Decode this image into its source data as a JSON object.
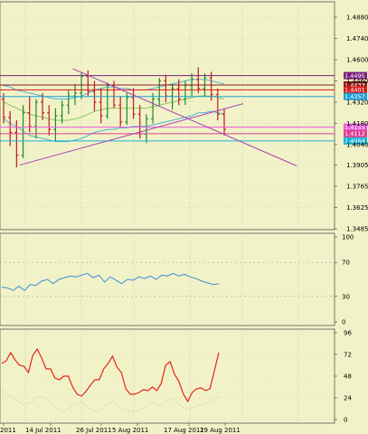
{
  "chart_data": [
    {
      "type": "candlestick",
      "panel": "price",
      "y_ticks": [
        "1.4880",
        "1.4740",
        "1.4600",
        "1.4460",
        "1.4320",
        "1.4180",
        "1.4040",
        "1.3905",
        "1.3765",
        "1.3625",
        "1.3485"
      ],
      "ylim": [
        1.3485,
        1.488
      ],
      "bars": [
        {
          "o": 1.434,
          "h": 1.438,
          "l": 1.418,
          "c": 1.422
        },
        {
          "o": 1.422,
          "h": 1.426,
          "l": 1.403,
          "c": 1.412
        },
        {
          "o": 1.412,
          "h": 1.42,
          "l": 1.389,
          "c": 1.397
        },
        {
          "o": 1.397,
          "h": 1.43,
          "l": 1.395,
          "c": 1.425
        },
        {
          "o": 1.425,
          "h": 1.436,
          "l": 1.412,
          "c": 1.416
        },
        {
          "o": 1.416,
          "h": 1.434,
          "l": 1.408,
          "c": 1.432
        },
        {
          "o": 1.432,
          "h": 1.438,
          "l": 1.42,
          "c": 1.425
        },
        {
          "o": 1.425,
          "h": 1.43,
          "l": 1.41,
          "c": 1.414
        },
        {
          "o": 1.414,
          "h": 1.428,
          "l": 1.406,
          "c": 1.423
        },
        {
          "o": 1.423,
          "h": 1.433,
          "l": 1.418,
          "c": 1.43
        },
        {
          "o": 1.43,
          "h": 1.44,
          "l": 1.424,
          "c": 1.436
        },
        {
          "o": 1.436,
          "h": 1.444,
          "l": 1.43,
          "c": 1.438
        },
        {
          "o": 1.438,
          "h": 1.452,
          "l": 1.434,
          "c": 1.449
        },
        {
          "o": 1.449,
          "h": 1.453,
          "l": 1.436,
          "c": 1.439
        },
        {
          "o": 1.439,
          "h": 1.446,
          "l": 1.426,
          "c": 1.432
        },
        {
          "o": 1.432,
          "h": 1.441,
          "l": 1.418,
          "c": 1.423
        },
        {
          "o": 1.423,
          "h": 1.445,
          "l": 1.421,
          "c": 1.443
        },
        {
          "o": 1.443,
          "h": 1.446,
          "l": 1.428,
          "c": 1.43
        },
        {
          "o": 1.43,
          "h": 1.436,
          "l": 1.416,
          "c": 1.419
        },
        {
          "o": 1.419,
          "h": 1.438,
          "l": 1.417,
          "c": 1.435
        },
        {
          "o": 1.435,
          "h": 1.441,
          "l": 1.421,
          "c": 1.424
        },
        {
          "o": 1.424,
          "h": 1.43,
          "l": 1.408,
          "c": 1.411
        },
        {
          "o": 1.411,
          "h": 1.424,
          "l": 1.405,
          "c": 1.421
        },
        {
          "o": 1.421,
          "h": 1.438,
          "l": 1.418,
          "c": 1.434
        },
        {
          "o": 1.434,
          "h": 1.448,
          "l": 1.43,
          "c": 1.446
        },
        {
          "o": 1.446,
          "h": 1.45,
          "l": 1.432,
          "c": 1.436
        },
        {
          "o": 1.436,
          "h": 1.444,
          "l": 1.427,
          "c": 1.441
        },
        {
          "o": 1.441,
          "h": 1.447,
          "l": 1.43,
          "c": 1.434
        },
        {
          "o": 1.434,
          "h": 1.446,
          "l": 1.43,
          "c": 1.443
        },
        {
          "o": 1.443,
          "h": 1.451,
          "l": 1.436,
          "c": 1.447
        },
        {
          "o": 1.447,
          "h": 1.455,
          "l": 1.438,
          "c": 1.441
        },
        {
          "o": 1.441,
          "h": 1.451,
          "l": 1.436,
          "c": 1.448
        },
        {
          "o": 1.448,
          "h": 1.452,
          "l": 1.433,
          "c": 1.437
        },
        {
          "o": 1.437,
          "h": 1.441,
          "l": 1.42,
          "c": 1.424
        },
        {
          "o": 1.424,
          "h": 1.428,
          "l": 1.41,
          "c": 1.414
        }
      ],
      "bollinger": {
        "upper": [
          1.443,
          1.442,
          1.44,
          1.439,
          1.438,
          1.437,
          1.436,
          1.435,
          1.434,
          1.434,
          1.434,
          1.435,
          1.436,
          1.438,
          1.44,
          1.441,
          1.442,
          1.442,
          1.441,
          1.441,
          1.44,
          1.44,
          1.44,
          1.441,
          1.442,
          1.443,
          1.444,
          1.445,
          1.446,
          1.447,
          1.447,
          1.447,
          1.446,
          1.445,
          1.444
        ],
        "middle": [
          1.432,
          1.43,
          1.428,
          1.426,
          1.424,
          1.423,
          1.422,
          1.421,
          1.42,
          1.42,
          1.42,
          1.421,
          1.422,
          1.424,
          1.426,
          1.427,
          1.428,
          1.428,
          1.428,
          1.428,
          1.428,
          1.428,
          1.428,
          1.429,
          1.43,
          1.431,
          1.432,
          1.433,
          1.434,
          1.435,
          1.436,
          1.436,
          1.436,
          1.435,
          1.434
        ],
        "lower": [
          1.421,
          1.418,
          1.416,
          1.413,
          1.41,
          1.409,
          1.408,
          1.407,
          1.406,
          1.406,
          1.406,
          1.407,
          1.408,
          1.41,
          1.412,
          1.413,
          1.414,
          1.414,
          1.415,
          1.415,
          1.416,
          1.416,
          1.416,
          1.417,
          1.418,
          1.419,
          1.42,
          1.421,
          1.422,
          1.423,
          1.425,
          1.425,
          1.426,
          1.425,
          1.424
        ]
      },
      "h_levels": [
        {
          "label": "1.4495",
          "value": 1.4495,
          "color": "#7a1f7a"
        },
        {
          "label": "1.4433",
          "value": 1.4433,
          "color": "#8b1a1a"
        },
        {
          "label": "1.4401",
          "value": 1.4401,
          "color": "#d81b1b"
        },
        {
          "label": "1.4357",
          "value": 1.4357,
          "color": "#1f9fd6"
        },
        {
          "label": "1.4155",
          "value": 1.4155,
          "color": "#e85ad8"
        },
        {
          "label": "1.4112",
          "value": 1.4112,
          "color": "#e03c8f"
        },
        {
          "label": "1.4064",
          "value": 1.4064,
          "color": "#19b3d6"
        }
      ],
      "trendlines": [
        {
          "from": [
            3,
            1.3905
          ],
          "to": [
            45,
            1.431
          ],
          "color": "#a83fb3"
        },
        {
          "from": [
            13,
            1.454
          ],
          "to": [
            55,
            1.39
          ],
          "color": "#a83fb3"
        }
      ]
    },
    {
      "type": "line",
      "panel": "oscillator-1",
      "y_ticks": [
        "100",
        "70",
        "30",
        "0"
      ],
      "ylim": [
        0,
        100
      ],
      "series": [
        {
          "color": "#3a8fd8",
          "values": [
            41,
            40,
            37,
            42,
            37,
            44,
            43,
            48,
            50,
            45,
            50,
            52,
            54,
            53,
            55,
            57,
            52,
            55,
            47,
            53,
            49,
            45,
            50,
            49,
            53,
            51,
            54,
            50,
            55,
            54,
            57,
            54,
            56,
            53,
            51,
            48,
            46,
            44,
            45
          ]
        }
      ]
    },
    {
      "type": "line",
      "panel": "oscillator-2",
      "y_ticks": [
        "96",
        "72",
        "48",
        "24",
        "0"
      ],
      "ylim": [
        0,
        96
      ],
      "series": [
        {
          "color": "#e8241a",
          "values": [
            62,
            65,
            74,
            66,
            60,
            59,
            52,
            71,
            78,
            68,
            56,
            56,
            46,
            44,
            48,
            48,
            36,
            28,
            26,
            31,
            38,
            44,
            44,
            56,
            62,
            70,
            58,
            52,
            34,
            28,
            28,
            30,
            33,
            32,
            36,
            32,
            40,
            60,
            64,
            50,
            42,
            28,
            20,
            30,
            34,
            35,
            32,
            34,
            54,
            74
          ]
        },
        {
          "color": "#d8c89a",
          "values": [
            33,
            29,
            26,
            23,
            20,
            16,
            18,
            21,
            24,
            26,
            23,
            18,
            14,
            10,
            8,
            12,
            16,
            18,
            20,
            15,
            11,
            9,
            10,
            14,
            18,
            20,
            16,
            12,
            10,
            9,
            9,
            11,
            12,
            16,
            20,
            16,
            15,
            20,
            24,
            22,
            17,
            13,
            11,
            13,
            15,
            16,
            18,
            20,
            23,
            26
          ]
        }
      ]
    }
  ],
  "x_ticks": [
    "2011",
    "14 Jul 2011",
    "26 Jul 2011",
    "5 Aug 2011",
    "17 Aug 2011",
    "29 Aug 2011"
  ]
}
